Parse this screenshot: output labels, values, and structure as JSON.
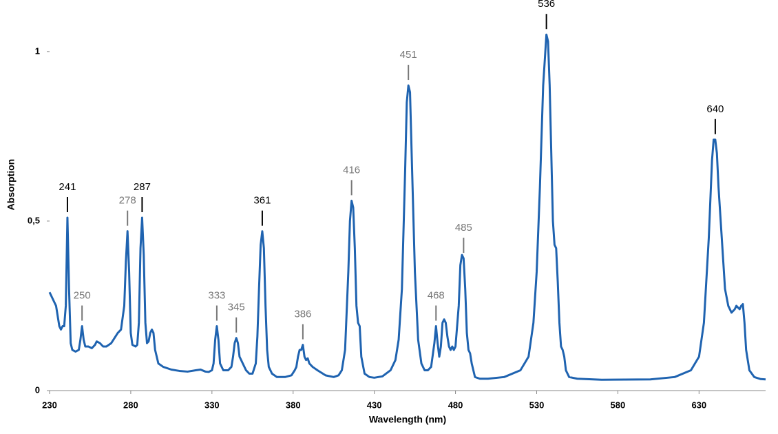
{
  "chart_data": {
    "type": "line",
    "x_label": "Wavelength (nm)",
    "y_label": "Absorption",
    "color": "#1f63b0",
    "xlim": [
      230,
      671
    ],
    "ylim": [
      0,
      1.15
    ],
    "xticks": [
      230,
      280,
      330,
      380,
      430,
      480,
      530,
      580,
      630
    ],
    "yticks": [
      0,
      {
        "value": 0.5,
        "label": "0,5"
      },
      1
    ],
    "x": [
      230,
      232,
      234,
      236,
      237,
      238,
      239,
      240,
      241,
      242,
      243,
      244,
      246,
      248,
      249,
      250,
      251,
      252,
      254,
      256,
      258,
      259,
      261,
      263,
      265,
      268,
      270,
      272,
      274,
      276,
      277,
      278,
      279,
      280,
      281,
      283,
      284,
      285,
      286,
      287,
      288,
      289,
      290,
      291,
      292,
      293,
      294,
      295,
      297,
      300,
      305,
      310,
      315,
      320,
      323,
      326,
      328,
      330,
      331,
      332,
      333,
      334,
      335,
      337,
      340,
      342,
      343,
      344,
      345,
      346,
      347,
      349,
      351,
      353,
      355,
      357,
      358,
      359,
      360,
      361,
      362,
      363,
      364,
      365,
      367,
      370,
      375,
      379,
      381,
      382,
      383,
      384,
      385,
      386,
      387,
      388,
      389,
      390,
      392,
      395,
      400,
      405,
      408,
      410,
      412,
      414,
      415,
      416,
      417,
      418,
      419,
      420,
      421,
      422,
      424,
      427,
      430,
      435,
      440,
      443,
      445,
      447,
      449,
      450,
      451,
      452,
      453,
      455,
      457,
      459,
      461,
      463,
      465,
      467,
      468,
      469,
      470,
      471,
      472,
      473,
      474,
      475,
      476,
      477,
      478,
      479,
      480,
      482,
      483,
      484,
      485,
      486,
      487,
      488,
      489,
      490,
      492,
      495,
      500,
      510,
      520,
      525,
      528,
      530,
      532,
      534,
      536,
      537,
      538,
      539,
      540,
      541,
      542,
      543,
      544,
      545,
      546,
      547,
      548,
      550,
      555,
      570,
      600,
      615,
      625,
      630,
      633,
      636,
      638,
      639,
      640,
      641,
      642,
      644,
      646,
      648,
      650,
      652,
      653,
      654,
      655,
      656,
      657,
      658,
      659,
      661,
      664,
      668,
      671
    ],
    "values": [
      0.29,
      0.27,
      0.25,
      0.19,
      0.18,
      0.19,
      0.19,
      0.25,
      0.51,
      0.3,
      0.14,
      0.12,
      0.115,
      0.12,
      0.15,
      0.19,
      0.15,
      0.13,
      0.13,
      0.125,
      0.135,
      0.145,
      0.14,
      0.13,
      0.13,
      0.14,
      0.155,
      0.17,
      0.18,
      0.25,
      0.38,
      0.47,
      0.35,
      0.17,
      0.135,
      0.13,
      0.135,
      0.2,
      0.42,
      0.51,
      0.4,
      0.2,
      0.14,
      0.145,
      0.17,
      0.18,
      0.17,
      0.12,
      0.08,
      0.07,
      0.062,
      0.058,
      0.056,
      0.06,
      0.062,
      0.056,
      0.055,
      0.06,
      0.08,
      0.15,
      0.19,
      0.15,
      0.08,
      0.06,
      0.06,
      0.07,
      0.1,
      0.14,
      0.155,
      0.14,
      0.1,
      0.08,
      0.06,
      0.05,
      0.05,
      0.08,
      0.16,
      0.3,
      0.43,
      0.47,
      0.42,
      0.25,
      0.12,
      0.07,
      0.05,
      0.04,
      0.04,
      0.045,
      0.06,
      0.07,
      0.1,
      0.12,
      0.12,
      0.135,
      0.1,
      0.09,
      0.095,
      0.08,
      0.07,
      0.06,
      0.045,
      0.04,
      0.045,
      0.06,
      0.12,
      0.35,
      0.5,
      0.56,
      0.54,
      0.42,
      0.25,
      0.2,
      0.19,
      0.1,
      0.05,
      0.04,
      0.038,
      0.042,
      0.06,
      0.09,
      0.15,
      0.3,
      0.65,
      0.85,
      0.9,
      0.88,
      0.7,
      0.35,
      0.15,
      0.08,
      0.06,
      0.06,
      0.07,
      0.14,
      0.19,
      0.14,
      0.1,
      0.13,
      0.2,
      0.21,
      0.2,
      0.16,
      0.13,
      0.12,
      0.13,
      0.12,
      0.13,
      0.25,
      0.37,
      0.4,
      0.39,
      0.3,
      0.17,
      0.12,
      0.11,
      0.08,
      0.04,
      0.035,
      0.035,
      0.04,
      0.06,
      0.1,
      0.2,
      0.35,
      0.6,
      0.9,
      1.05,
      1.03,
      0.9,
      0.7,
      0.5,
      0.43,
      0.42,
      0.32,
      0.2,
      0.13,
      0.12,
      0.1,
      0.06,
      0.04,
      0.035,
      0.032,
      0.033,
      0.04,
      0.06,
      0.1,
      0.2,
      0.45,
      0.68,
      0.74,
      0.74,
      0.7,
      0.6,
      0.45,
      0.3,
      0.25,
      0.23,
      0.24,
      0.25,
      0.245,
      0.24,
      0.25,
      0.255,
      0.2,
      0.12,
      0.06,
      0.04,
      0.034,
      0.033
    ],
    "annotations": [
      {
        "x": 241,
        "color": "#000000"
      },
      {
        "x": 250,
        "color": "#777777"
      },
      {
        "x": 278,
        "color": "#777777"
      },
      {
        "x": 287,
        "color": "#000000"
      },
      {
        "x": 333,
        "color": "#777777"
      },
      {
        "x": 345,
        "color": "#777777"
      },
      {
        "x": 361,
        "color": "#000000"
      },
      {
        "x": 386,
        "color": "#777777"
      },
      {
        "x": 416,
        "color": "#777777"
      },
      {
        "x": 451,
        "color": "#777777"
      },
      {
        "x": 468,
        "color": "#777777"
      },
      {
        "x": 485,
        "color": "#777777"
      },
      {
        "x": 536,
        "color": "#000000"
      },
      {
        "x": 640,
        "color": "#000000"
      }
    ]
  }
}
